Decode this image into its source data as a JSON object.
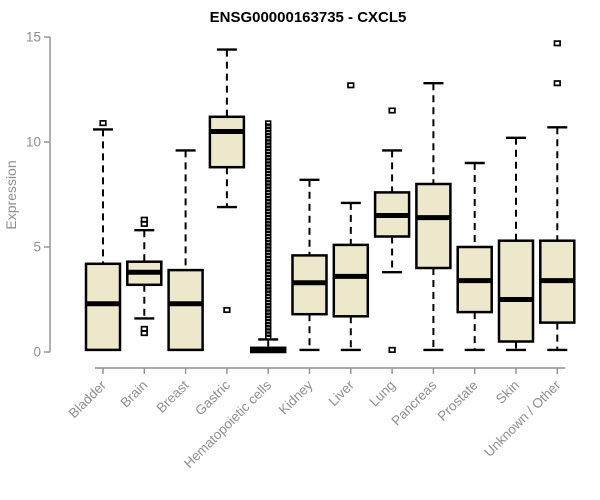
{
  "chart_data": {
    "type": "boxplot",
    "title": "ENSG00000163735 - CXCL5",
    "xlabel": "",
    "ylabel": "Expression",
    "ylim": [
      0,
      15
    ],
    "yticks": [
      0,
      5,
      10,
      15
    ],
    "grid": false,
    "legend": false,
    "colors": {
      "box_fill": "#ede8cc",
      "box_border": "#000000",
      "median": "#000000",
      "whisker": "#000000",
      "axis": "#8f8f8f",
      "tick_label": "#8f8f8f",
      "title": "#000000",
      "background": "#ffffff"
    },
    "categories": [
      "Bladder",
      "Brain",
      "Breast",
      "Gastric",
      "Hematopoietic cells",
      "Kidney",
      "Liver",
      "Lung",
      "Pancreas",
      "Prostate",
      "Skin",
      "Unknown / Other"
    ],
    "boxes": [
      {
        "category": "Bladder",
        "whisker_low": 0.1,
        "q1": 0.1,
        "median": 2.3,
        "q3": 4.2,
        "whisker_high": 10.6,
        "outliers": [
          10.9
        ]
      },
      {
        "category": "Brain",
        "whisker_low": 1.6,
        "q1": 3.2,
        "median": 3.8,
        "q3": 4.3,
        "whisker_high": 5.8,
        "outliers": [
          6.3,
          6.1,
          1.1,
          0.9
        ]
      },
      {
        "category": "Breast",
        "whisker_low": 0.1,
        "q1": 0.1,
        "median": 2.3,
        "q3": 3.9,
        "whisker_high": 9.6,
        "outliers": []
      },
      {
        "category": "Gastric",
        "whisker_low": 6.9,
        "q1": 8.8,
        "median": 10.5,
        "q3": 11.2,
        "whisker_high": 14.4,
        "outliers": [
          2.0
        ]
      },
      {
        "category": "Hematopoietic cells",
        "whisker_low": 0.0,
        "q1": 0.0,
        "median": 0.1,
        "q3": 0.2,
        "whisker_high": 0.6,
        "outliers": [],
        "outlier_column": {
          "from": 0.7,
          "to": 10.9,
          "step": 0.15
        }
      },
      {
        "category": "Kidney",
        "whisker_low": 0.1,
        "q1": 1.8,
        "median": 3.3,
        "q3": 4.6,
        "whisker_high": 8.2,
        "outliers": []
      },
      {
        "category": "Liver",
        "whisker_low": 0.1,
        "q1": 1.7,
        "median": 3.6,
        "q3": 5.1,
        "whisker_high": 7.1,
        "outliers": [
          12.7
        ]
      },
      {
        "category": "Lung",
        "whisker_low": 3.8,
        "q1": 5.5,
        "median": 6.5,
        "q3": 7.6,
        "whisker_high": 9.6,
        "outliers": [
          11.5,
          0.1
        ]
      },
      {
        "category": "Pancreas",
        "whisker_low": 0.1,
        "q1": 4.0,
        "median": 6.4,
        "q3": 8.0,
        "whisker_high": 12.8,
        "outliers": []
      },
      {
        "category": "Prostate",
        "whisker_low": 0.1,
        "q1": 1.9,
        "median": 3.4,
        "q3": 5.0,
        "whisker_high": 9.0,
        "outliers": []
      },
      {
        "category": "Skin",
        "whisker_low": 0.1,
        "q1": 0.5,
        "median": 2.5,
        "q3": 5.3,
        "whisker_high": 10.2,
        "outliers": []
      },
      {
        "category": "Unknown / Other",
        "whisker_low": 0.1,
        "q1": 1.4,
        "median": 3.4,
        "q3": 5.3,
        "whisker_high": 10.7,
        "outliers": [
          14.7,
          12.8
        ]
      }
    ]
  }
}
